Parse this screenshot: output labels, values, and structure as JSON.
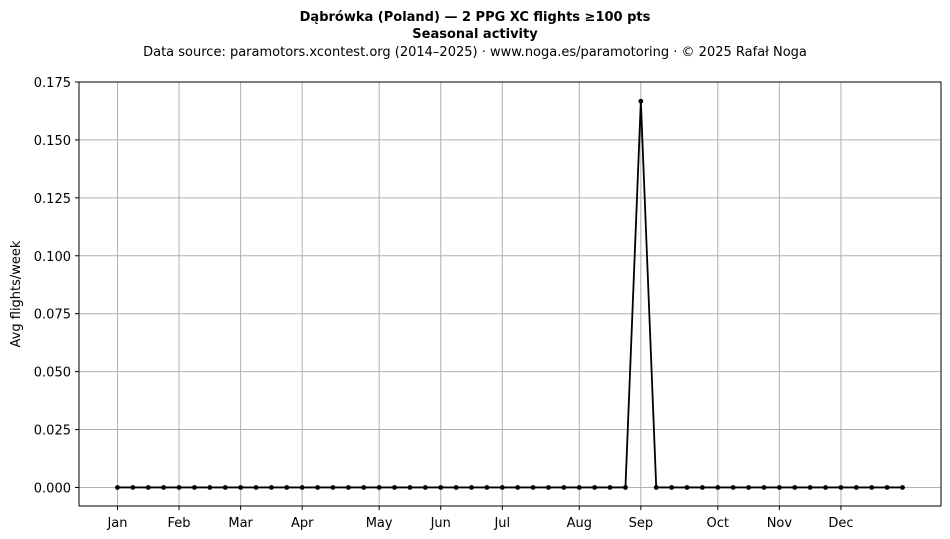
{
  "chart_data": {
    "type": "line",
    "title": "Dąbrówka (Poland)  —  2 PPG XC flights ≥100 pts",
    "title_line2": "Seasonal activity",
    "subtitle": "Data source: paramotors.xcontest.org (2014–2025)  ·  www.noga.es/paramotoring  ·  © 2025 Rafał Noga",
    "xlabel": "",
    "ylabel": "Avg flights/week",
    "ylim": [
      -0.008,
      0.175
    ],
    "xlim": [
      -2.5,
      53.5
    ],
    "grid": true,
    "legend": "none",
    "line_color": "#000000",
    "grid_color": "#b0b0b0",
    "x_ticks": [
      {
        "label": "Jan",
        "x": 0
      },
      {
        "label": "Feb",
        "x": 4
      },
      {
        "label": "Mar",
        "x": 8
      },
      {
        "label": "Apr",
        "x": 12
      },
      {
        "label": "May",
        "x": 17
      },
      {
        "label": "Jun",
        "x": 21
      },
      {
        "label": "Jul",
        "x": 25
      },
      {
        "label": "Aug",
        "x": 30
      },
      {
        "label": "Sep",
        "x": 34
      },
      {
        "label": "Oct",
        "x": 39
      },
      {
        "label": "Nov",
        "x": 43
      },
      {
        "label": "Dec",
        "x": 47
      }
    ],
    "y_ticks": [
      {
        "label": "0.000",
        "y": 0.0
      },
      {
        "label": "0.025",
        "y": 0.025
      },
      {
        "label": "0.050",
        "y": 0.05
      },
      {
        "label": "0.075",
        "y": 0.075
      },
      {
        "label": "0.100",
        "y": 0.1
      },
      {
        "label": "0.125",
        "y": 0.125
      },
      {
        "label": "0.150",
        "y": 0.15
      },
      {
        "label": "0.175",
        "y": 0.175
      }
    ],
    "series": [
      {
        "x": [
          0,
          1,
          2,
          3,
          4,
          5,
          6,
          7,
          8,
          9,
          10,
          11,
          12,
          13,
          14,
          15,
          16,
          17,
          18,
          19,
          20,
          21,
          22,
          23,
          24,
          25,
          26,
          27,
          28,
          29,
          30,
          31,
          32,
          33,
          34,
          35,
          36,
          37,
          38,
          39,
          40,
          41,
          42,
          43,
          44,
          45,
          46,
          47,
          48,
          49,
          50,
          51
        ],
        "values": [
          0,
          0,
          0,
          0,
          0,
          0,
          0,
          0,
          0,
          0,
          0,
          0,
          0,
          0,
          0,
          0,
          0,
          0,
          0,
          0,
          0,
          0,
          0,
          0,
          0,
          0,
          0,
          0,
          0,
          0,
          0,
          0,
          0,
          0,
          0.1667,
          0,
          0,
          0,
          0,
          0,
          0,
          0,
          0,
          0,
          0,
          0,
          0,
          0,
          0,
          0,
          0,
          0
        ]
      }
    ]
  }
}
